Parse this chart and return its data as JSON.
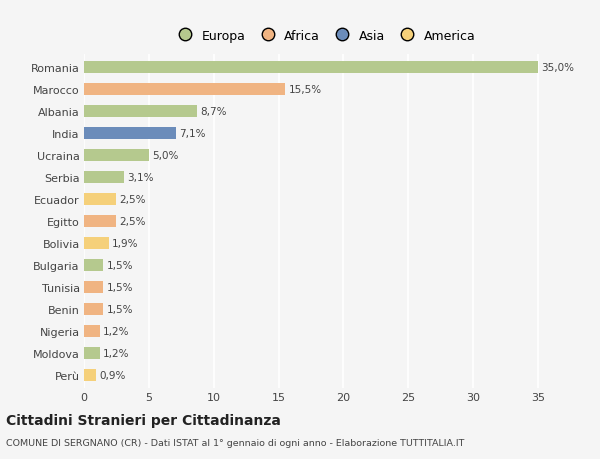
{
  "countries": [
    "Romania",
    "Marocco",
    "Albania",
    "India",
    "Ucraina",
    "Serbia",
    "Ecuador",
    "Egitto",
    "Bolivia",
    "Bulgaria",
    "Tunisia",
    "Benin",
    "Nigeria",
    "Moldova",
    "Perù"
  ],
  "values": [
    35.0,
    15.5,
    8.7,
    7.1,
    5.0,
    3.1,
    2.5,
    2.5,
    1.9,
    1.5,
    1.5,
    1.5,
    1.2,
    1.2,
    0.9
  ],
  "labels": [
    "35,0%",
    "15,5%",
    "8,7%",
    "7,1%",
    "5,0%",
    "3,1%",
    "2,5%",
    "2,5%",
    "1,9%",
    "1,5%",
    "1,5%",
    "1,5%",
    "1,2%",
    "1,2%",
    "0,9%"
  ],
  "colors": [
    "#b5c98e",
    "#f0b482",
    "#b5c98e",
    "#6b8cba",
    "#b5c98e",
    "#b5c98e",
    "#f5d07a",
    "#f0b482",
    "#f5d07a",
    "#b5c98e",
    "#f0b482",
    "#f0b482",
    "#f0b482",
    "#b5c98e",
    "#f5d07a"
  ],
  "legend_names": [
    "Europa",
    "Africa",
    "Asia",
    "America"
  ],
  "legend_colors": [
    "#b5c98e",
    "#f0b482",
    "#6b8cba",
    "#f5d07a"
  ],
  "xlim": [
    0,
    37
  ],
  "xticks": [
    0,
    5,
    10,
    15,
    20,
    25,
    30,
    35
  ],
  "title": "Cittadini Stranieri per Cittadinanza",
  "subtitle": "COMUNE DI SERGNANO (CR) - Dati ISTAT al 1° gennaio di ogni anno - Elaborazione TUTTITALIA.IT",
  "background_color": "#f5f5f5",
  "grid_color": "#ffffff",
  "text_color": "#444444",
  "bar_height": 0.55
}
